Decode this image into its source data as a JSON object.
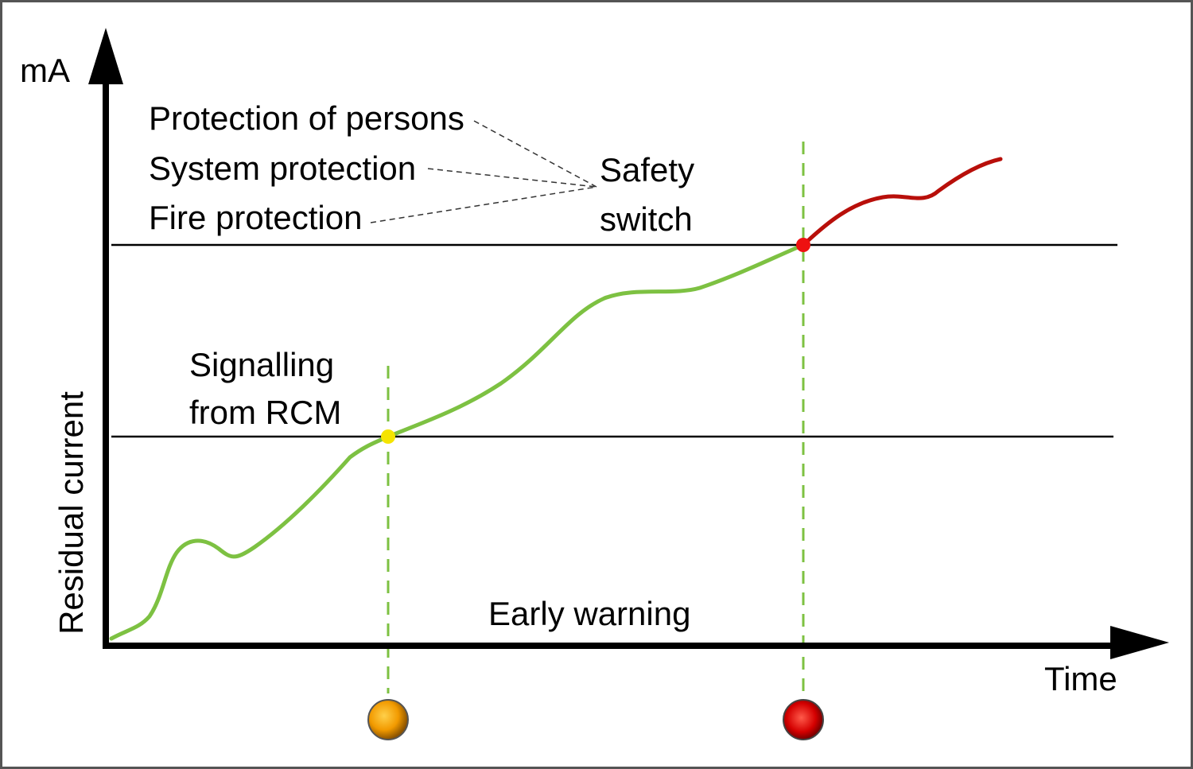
{
  "axes": {
    "y_unit": "mA",
    "y_label": "Residual current",
    "x_label": "Time"
  },
  "labels": {
    "protection_of_persons": "Protection of persons",
    "system_protection": "System protection",
    "fire_protection": "Fire protection",
    "safety_switch": [
      "Safety",
      "switch"
    ],
    "signalling": [
      "Signalling",
      "from RCM"
    ],
    "early_warning": "Early warning"
  }
}
